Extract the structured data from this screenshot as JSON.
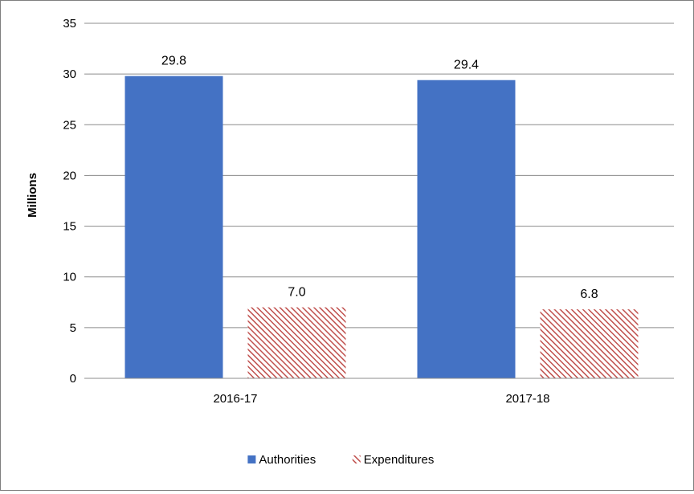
{
  "chart_data": {
    "type": "bar",
    "title": "",
    "xlabel": "",
    "ylabel": "Millions",
    "categories": [
      "2016-17",
      "2017-18"
    ],
    "series": [
      {
        "name": "Authorities",
        "values": [
          29.8,
          29.4
        ],
        "labels": [
          "29.8",
          "29.4"
        ],
        "color": "#4472c4",
        "pattern": "solid"
      },
      {
        "name": "Expenditures",
        "values": [
          7.0,
          6.8
        ],
        "labels": [
          "7.0",
          "6.8"
        ],
        "color": "#c0504d",
        "pattern": "diagonal-hatch"
      }
    ],
    "ylim": [
      0,
      35
    ],
    "yticks": [
      "0",
      "5",
      "10",
      "15",
      "20",
      "25",
      "30",
      "35"
    ],
    "grid": true,
    "legend": "bottom"
  }
}
